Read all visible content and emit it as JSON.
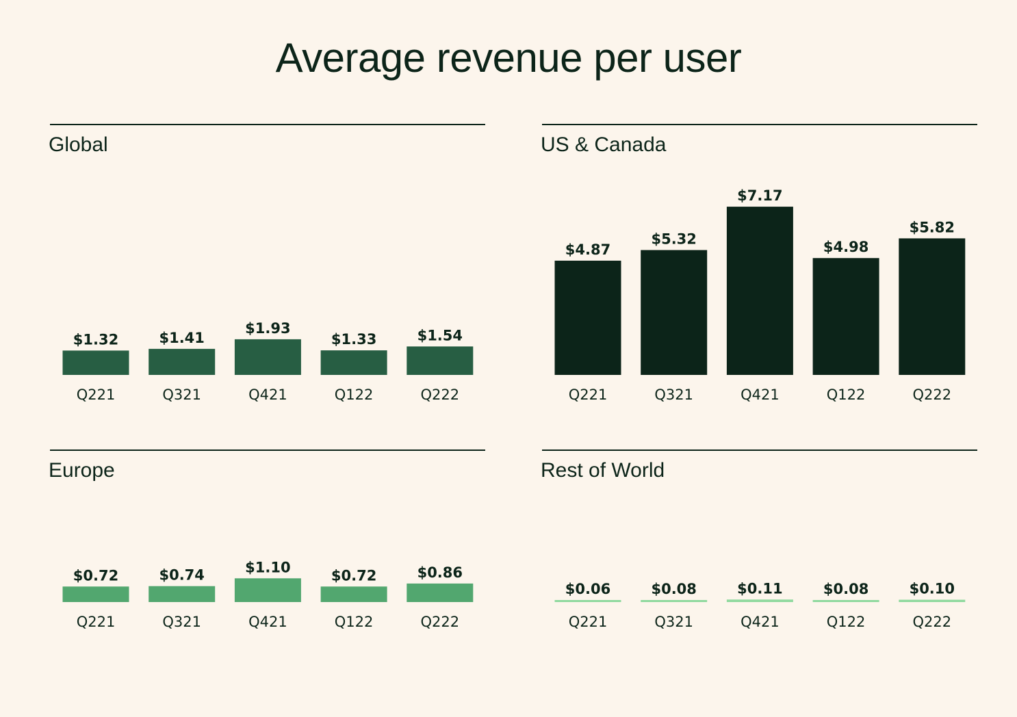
{
  "title": "Average revenue per user",
  "colors": {
    "background": "#fcf5ec",
    "text": "#0c2419",
    "global": "#275e43",
    "us_canada": "#0c2419",
    "europe": "#52a76f",
    "rest_of_world": "#8fd99e"
  },
  "chart_data": [
    {
      "type": "bar",
      "title": "Global",
      "categories": [
        "Q221",
        "Q321",
        "Q421",
        "Q122",
        "Q222"
      ],
      "values": [
        1.32,
        1.41,
        1.93,
        1.33,
        1.54
      ],
      "value_labels": [
        "$1.32",
        "$1.41",
        "$1.93",
        "$1.33",
        "$1.54"
      ],
      "color": "#275e43",
      "xlabel": "",
      "ylabel": "",
      "grid": false
    },
    {
      "type": "bar",
      "title": "US & Canada",
      "categories": [
        "Q221",
        "Q321",
        "Q421",
        "Q122",
        "Q222"
      ],
      "values": [
        4.87,
        5.32,
        7.17,
        4.98,
        5.82
      ],
      "value_labels": [
        "$4.87",
        "$5.32",
        "$7.17",
        "$4.98",
        "$5.82"
      ],
      "color": "#0c2419",
      "xlabel": "",
      "ylabel": "",
      "grid": false
    },
    {
      "type": "bar",
      "title": "Europe",
      "categories": [
        "Q221",
        "Q321",
        "Q421",
        "Q122",
        "Q222"
      ],
      "values": [
        0.72,
        0.74,
        1.1,
        0.72,
        0.86
      ],
      "value_labels": [
        "$0.72",
        "$0.74",
        "$1.10",
        "$0.72",
        "$0.86"
      ],
      "color": "#52a76f",
      "xlabel": "",
      "ylabel": "",
      "grid": false
    },
    {
      "type": "bar",
      "title": "Rest of World",
      "categories": [
        "Q221",
        "Q321",
        "Q421",
        "Q122",
        "Q222"
      ],
      "values": [
        0.06,
        0.08,
        0.11,
        0.08,
        0.1
      ],
      "value_labels": [
        "$0.06",
        "$0.08",
        "$0.11",
        "$0.08",
        "$0.10"
      ],
      "color": "#8fd99e",
      "xlabel": "",
      "ylabel": "",
      "grid": false
    }
  ]
}
